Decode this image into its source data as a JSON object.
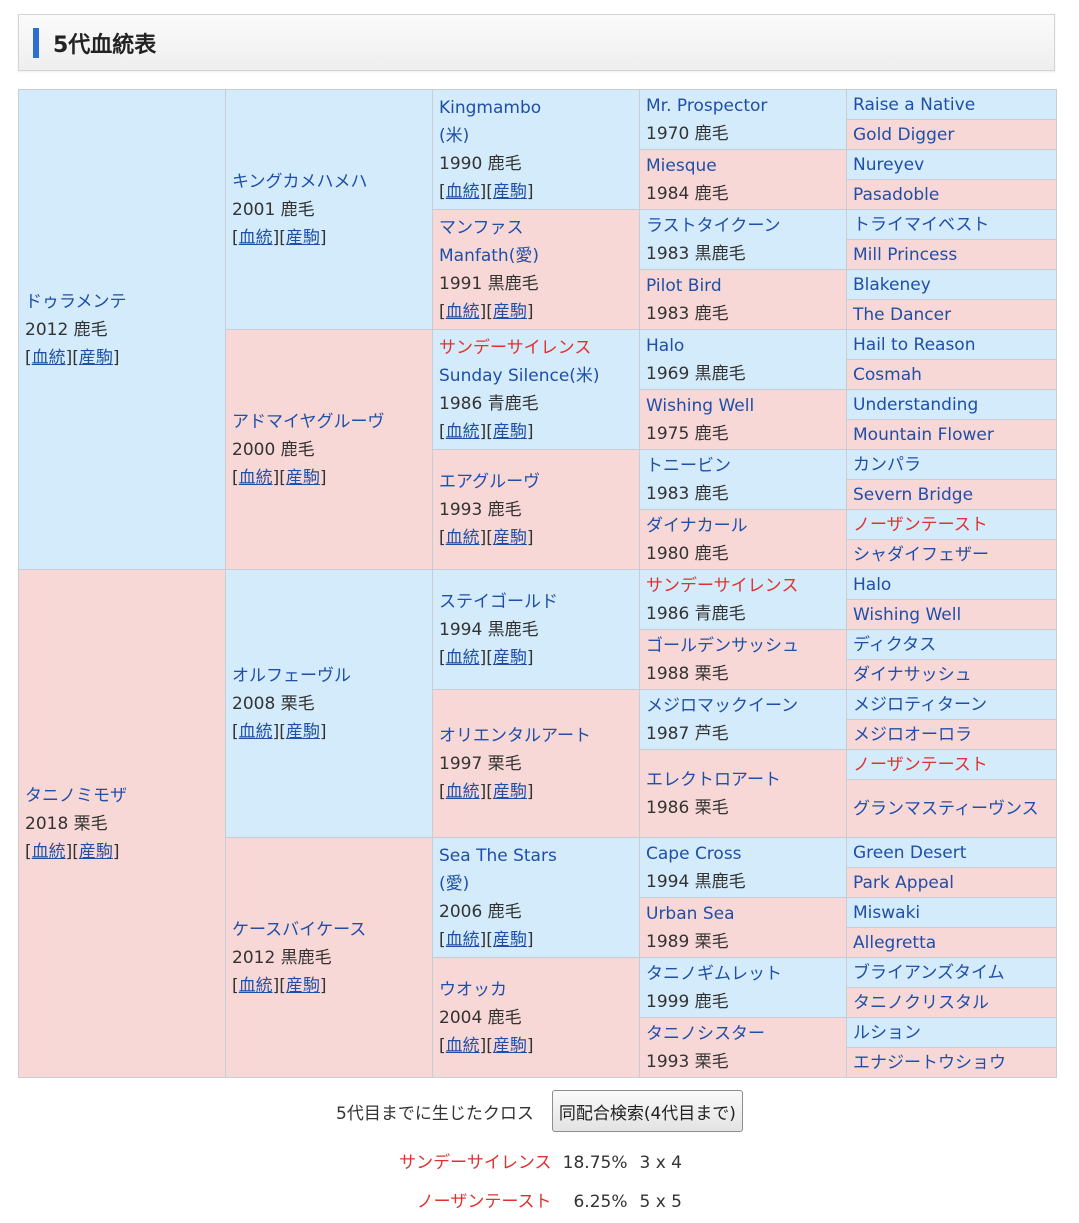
{
  "header": {
    "title": "5代血統表"
  },
  "links": {
    "blood": "血統",
    "foals": "産駒"
  },
  "g1": [
    {
      "name": "ドゥラメンテ",
      "info": "2012 鹿毛"
    },
    {
      "name": "タニノミモザ",
      "info": "2018 栗毛"
    }
  ],
  "g2": [
    {
      "name": "キングカメハメハ",
      "info": "2001 鹿毛"
    },
    {
      "name": "アドマイヤグルーヴ",
      "info": "2000 鹿毛"
    },
    {
      "name": "オルフェーヴル",
      "info": "2008 栗毛"
    },
    {
      "name": "ケースバイケース",
      "info": "2012 黒鹿毛"
    }
  ],
  "g3": [
    {
      "name": "Kingmambo",
      "name2": "(米)",
      "info": "1990 鹿毛"
    },
    {
      "name": "マンファス",
      "name2": "Manfath(愛)",
      "info": "1991 黒鹿毛"
    },
    {
      "name": "サンデーサイレンス",
      "name2": "Sunday Silence(米)",
      "info": "1986 青鹿毛"
    },
    {
      "name": "エアグルーヴ",
      "info": "1993 鹿毛"
    },
    {
      "name": "ステイゴールド",
      "info": "1994 黒鹿毛"
    },
    {
      "name": "オリエンタルアート",
      "info": "1997 栗毛"
    },
    {
      "name": "Sea The Stars",
      "name2": "(愛)",
      "info": "2006 鹿毛"
    },
    {
      "name": "ウオッカ",
      "info": "2004 鹿毛"
    }
  ],
  "g4": [
    {
      "name": "Mr. Prospector",
      "info": "1970 鹿毛"
    },
    {
      "name": "Miesque",
      "info": "1984 鹿毛"
    },
    {
      "name": "ラストタイクーン",
      "info": "1983 黒鹿毛"
    },
    {
      "name": "Pilot Bird",
      "info": "1983 鹿毛"
    },
    {
      "name": "Halo",
      "info": "1969 黒鹿毛"
    },
    {
      "name": "Wishing Well",
      "info": "1975 鹿毛"
    },
    {
      "name": "トニービン",
      "info": "1983 鹿毛"
    },
    {
      "name": "ダイナカール",
      "info": "1980 鹿毛"
    },
    {
      "name": "サンデーサイレンス",
      "info": "1986 青鹿毛"
    },
    {
      "name": "ゴールデンサッシュ",
      "info": "1988 栗毛"
    },
    {
      "name": "メジロマックイーン",
      "info": "1987 芦毛"
    },
    {
      "name": "エレクトロアート",
      "info": "1986 栗毛"
    },
    {
      "name": "Cape Cross",
      "info": "1994 黒鹿毛"
    },
    {
      "name": "Urban Sea",
      "info": "1989 栗毛"
    },
    {
      "name": "タニノギムレット",
      "info": "1999 鹿毛"
    },
    {
      "name": "タニノシスター",
      "info": "1993 栗毛"
    }
  ],
  "g5": [
    "Raise a Native",
    "Gold Digger",
    "Nureyev",
    "Pasadoble",
    "トライマイベスト",
    "Mill Princess",
    "Blakeney",
    "The Dancer",
    "Hail to Reason",
    "Cosmah",
    "Understanding",
    "Mountain Flower",
    "カンパラ",
    "Severn Bridge",
    "ノーザンテースト",
    "シャダイフェザー",
    "Halo",
    "Wishing Well",
    "ディクタス",
    "ダイナサッシュ",
    "メジロティターン",
    "メジロオーロラ",
    "ノーザンテースト",
    "グランマスティーヴンス",
    "Green Desert",
    "Park Appeal",
    "Miswaki",
    "Allegretta",
    "ブライアンズタイム",
    "タニノクリスタル",
    "ルション",
    "エナジートウショウ"
  ],
  "cross": {
    "label": "5代目までに生じたクロス",
    "button": "同配合検索(4代目まで)",
    "items": [
      {
        "name": "サンデーサイレンス",
        "pct": "18.75%",
        "gen": "3 x 4"
      },
      {
        "name": "ノーザンテースト",
        "pct": "6.25%",
        "gen": "5 x 5"
      }
    ]
  }
}
